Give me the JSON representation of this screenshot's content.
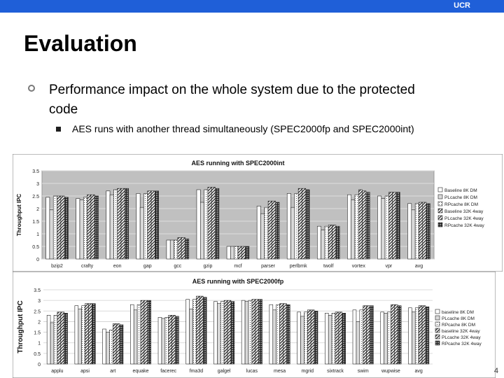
{
  "header": {
    "brand": "UCR"
  },
  "slide": {
    "title": "Evaluation",
    "bullet1": "Performance impact on the whole system due to the protected code",
    "bullet2": "AES runs with another thread simultaneously (SPEC2000fp and SPEC2000int)",
    "page_number": "4"
  },
  "colors": {
    "brand_bar": "#1f5fd8",
    "plot_bg": "#c0c0c0",
    "chart_bg": "#ffffff"
  },
  "chart_data": [
    {
      "type": "bar",
      "title": "AES running with SPEC2000int",
      "ylabel": "Throughput IPC",
      "ylim": [
        0,
        3.5
      ],
      "yticks": [
        "0",
        "0.5",
        "1",
        "1.5",
        "2",
        "2.5",
        "3",
        "3.5"
      ],
      "categories": [
        "bzip2",
        "crafty",
        "eon",
        "gap",
        "gcc",
        "gzip",
        "mcf",
        "parser",
        "perlbmk",
        "twolf",
        "vortex",
        "vpr",
        "avg"
      ],
      "legend_position": "right",
      "series": [
        {
          "name": "Baseline 8K DM",
          "values": [
            2.45,
            2.4,
            2.7,
            2.6,
            0.75,
            2.75,
            0.5,
            2.1,
            2.6,
            1.3,
            2.55,
            2.5,
            2.2
          ]
        },
        {
          "name": "PLcache 8K DM",
          "values": [
            1.95,
            2.35,
            2.55,
            2.05,
            0.75,
            2.25,
            0.5,
            1.8,
            2.05,
            1.15,
            2.35,
            2.4,
            1.95
          ]
        },
        {
          "name": "RPcache 8K DM",
          "values": [
            2.5,
            2.45,
            2.75,
            2.6,
            0.75,
            2.75,
            0.5,
            2.05,
            2.6,
            1.3,
            2.55,
            2.5,
            2.2
          ]
        },
        {
          "name": "Baseline 32K 4way",
          "values": [
            2.5,
            2.55,
            2.8,
            2.7,
            0.85,
            2.85,
            0.5,
            2.3,
            2.8,
            1.35,
            2.75,
            2.65,
            2.25
          ]
        },
        {
          "name": "PLcache 32K 4way",
          "values": [
            2.5,
            2.55,
            2.8,
            2.7,
            0.85,
            2.85,
            0.5,
            2.3,
            2.8,
            1.35,
            2.7,
            2.65,
            2.25
          ]
        },
        {
          "name": "RPcache 32K 4way",
          "values": [
            2.45,
            2.5,
            2.8,
            2.7,
            0.8,
            2.8,
            0.5,
            2.25,
            2.75,
            1.3,
            2.65,
            2.65,
            2.2
          ]
        }
      ]
    },
    {
      "type": "bar",
      "title": "AES running with SPEC2000fp",
      "ylabel": "Throughput IPC",
      "ylim": [
        0,
        3.5
      ],
      "yticks": [
        "0",
        "0.5",
        "1",
        "1.5",
        "2",
        "2.5",
        "3",
        "3.5"
      ],
      "categories": [
        "applu",
        "apsi",
        "art",
        "equake",
        "facerec",
        "fma3d",
        "galgel",
        "lucas",
        "mesa",
        "mgrid",
        "sixtrack",
        "swim",
        "wupwise",
        "avg"
      ],
      "legend_position": "right",
      "series": [
        {
          "name": "baseline 8K DM",
          "values": [
            2.3,
            2.75,
            1.65,
            2.8,
            2.2,
            3.05,
            2.95,
            3.0,
            2.8,
            2.45,
            2.4,
            2.55,
            2.45,
            2.65
          ]
        },
        {
          "name": "PLcache 8K DM",
          "values": [
            1.95,
            2.6,
            1.5,
            2.55,
            2.15,
            2.6,
            2.85,
            2.95,
            2.55,
            2.25,
            2.3,
            2.0,
            2.4,
            2.45
          ]
        },
        {
          "name": "RPcache 8K DM",
          "values": [
            2.3,
            2.75,
            1.6,
            2.8,
            2.2,
            3.05,
            2.95,
            3.0,
            2.8,
            2.45,
            2.4,
            2.55,
            2.45,
            2.65
          ]
        },
        {
          "name": "baseline 32K 4way",
          "values": [
            2.45,
            2.85,
            1.9,
            3.0,
            2.3,
            3.2,
            3.0,
            3.05,
            2.85,
            2.55,
            2.45,
            2.75,
            2.8,
            2.75
          ]
        },
        {
          "name": "PLcache 32K 4way",
          "values": [
            2.45,
            2.85,
            1.9,
            3.0,
            2.3,
            3.2,
            3.0,
            3.05,
            2.85,
            2.55,
            2.45,
            2.75,
            2.8,
            2.75
          ]
        },
        {
          "name": "RPcache 32K 4way",
          "values": [
            2.4,
            2.85,
            1.85,
            3.0,
            2.25,
            3.15,
            2.95,
            3.05,
            2.8,
            2.5,
            2.4,
            2.75,
            2.75,
            2.7
          ]
        }
      ]
    }
  ]
}
